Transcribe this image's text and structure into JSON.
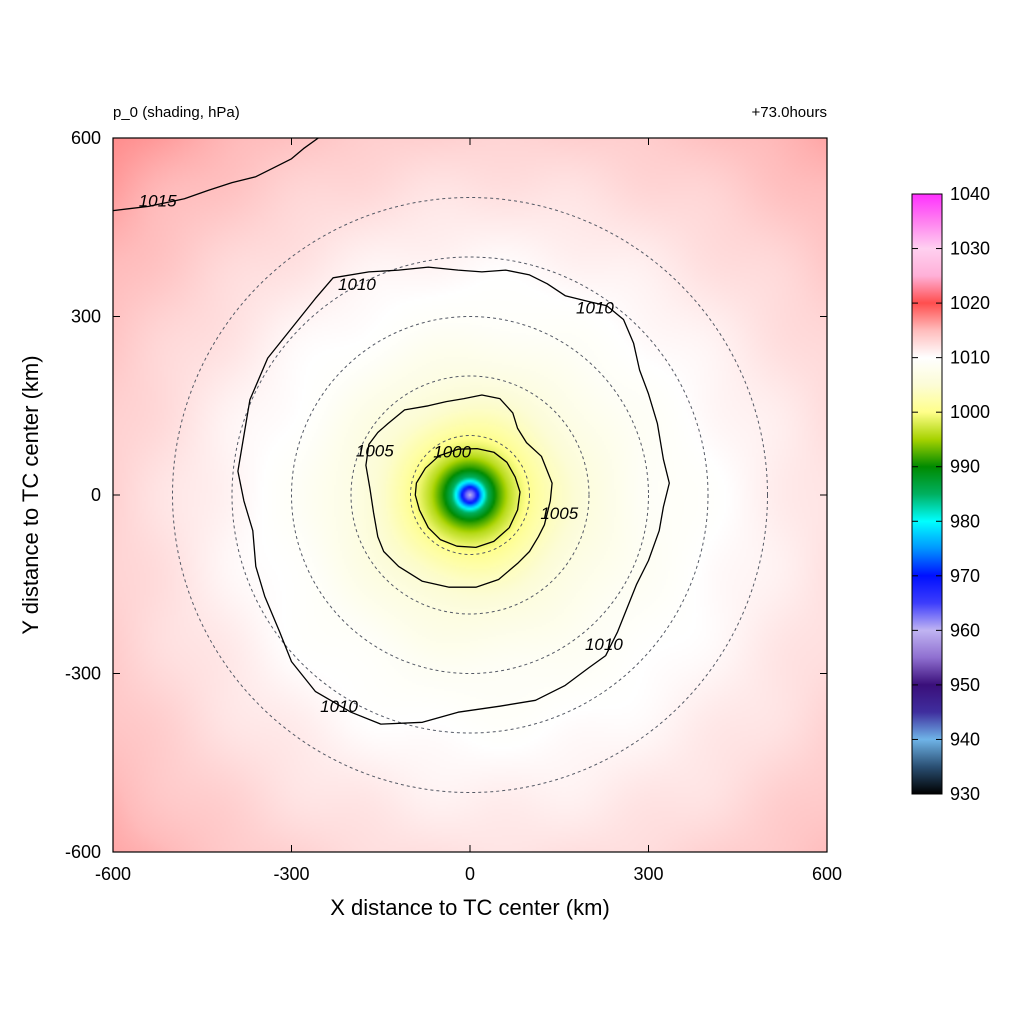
{
  "chart_data": {
    "type": "heatmap",
    "title_left": "p_0 (shading, hPa)",
    "title_right": "+73.0hours",
    "xlabel": "X distance to TC center (km)",
    "ylabel": "Y distance to TC center (km)",
    "xlim": [
      -600,
      600
    ],
    "ylim": [
      -600,
      600
    ],
    "xticks": [
      -600,
      -300,
      0,
      300,
      600
    ],
    "yticks": [
      -600,
      -300,
      0,
      300,
      600
    ],
    "xtick_labels": [
      "-600",
      "-300",
      "0",
      "300",
      "600"
    ],
    "ytick_labels": [
      "-600",
      "-300",
      "0",
      "300",
      "600"
    ],
    "colorbar": {
      "ticks": [
        930,
        940,
        950,
        960,
        970,
        980,
        990,
        1000,
        1010,
        1020,
        1030,
        1040
      ],
      "tick_labels": [
        "930",
        "940",
        "950",
        "960",
        "970",
        "980",
        "990",
        "1000",
        "1010",
        "1020",
        "1030",
        "1040"
      ],
      "stops": [
        {
          "v": 930,
          "c": "#000000"
        },
        {
          "v": 935,
          "c": "#2a4f73"
        },
        {
          "v": 940,
          "c": "#6fb4e8"
        },
        {
          "v": 945,
          "c": "#3f2e9e"
        },
        {
          "v": 950,
          "c": "#3a0f7a"
        },
        {
          "v": 955,
          "c": "#8f6fd0"
        },
        {
          "v": 960,
          "c": "#c0b4f2"
        },
        {
          "v": 965,
          "c": "#3d3dfc"
        },
        {
          "v": 970,
          "c": "#0010ff"
        },
        {
          "v": 975,
          "c": "#0096ff"
        },
        {
          "v": 980,
          "c": "#00ffff"
        },
        {
          "v": 985,
          "c": "#00b060"
        },
        {
          "v": 990,
          "c": "#008a00"
        },
        {
          "v": 995,
          "c": "#a6d200"
        },
        {
          "v": 1000,
          "c": "#ffff8a"
        },
        {
          "v": 1005,
          "c": "#fcfcd6"
        },
        {
          "v": 1010,
          "c": "#ffffff"
        },
        {
          "v": 1015,
          "c": "#ffbcbc"
        },
        {
          "v": 1020,
          "c": "#ff4e4e"
        },
        {
          "v": 1025,
          "c": "#ffb0d8"
        },
        {
          "v": 1030,
          "c": "#ffd0f0"
        },
        {
          "v": 1035,
          "c": "#ff80f0"
        },
        {
          "v": 1040,
          "c": "#ff30ff"
        }
      ]
    },
    "field_profile": [
      {
        "r": 0,
        "p": 960
      },
      {
        "r": 8,
        "p": 964
      },
      {
        "r": 15,
        "p": 972
      },
      {
        "r": 22,
        "p": 979
      },
      {
        "r": 30,
        "p": 985
      },
      {
        "r": 45,
        "p": 991
      },
      {
        "r": 65,
        "p": 996
      },
      {
        "r": 85,
        "p": 999
      },
      {
        "r": 110,
        "p": 1001.5
      },
      {
        "r": 145,
        "p": 1004
      },
      {
        "r": 200,
        "p": 1006.5
      },
      {
        "r": 290,
        "p": 1009
      },
      {
        "r": 380,
        "p": 1010
      },
      {
        "r": 500,
        "p": 1011.5
      },
      {
        "r": 650,
        "p": 1013.3
      },
      {
        "r": 850,
        "p": 1016
      }
    ],
    "range_circles_km": [
      100,
      200,
      300,
      400,
      500
    ],
    "contours": [
      {
        "level": 1000,
        "label": "1000",
        "points": [
          [
            -90,
            20
          ],
          [
            -75,
            45
          ],
          [
            -52,
            66
          ],
          [
            -20,
            77
          ],
          [
            12,
            78
          ],
          [
            40,
            72
          ],
          [
            62,
            55
          ],
          [
            76,
            30
          ],
          [
            84,
            5
          ],
          [
            80,
            -25
          ],
          [
            66,
            -55
          ],
          [
            40,
            -78
          ],
          [
            10,
            -88
          ],
          [
            -22,
            -86
          ],
          [
            -50,
            -75
          ],
          [
            -70,
            -55
          ],
          [
            -85,
            -25
          ],
          [
            -92,
            0
          ]
        ],
        "label_at": [
          -30,
          73
        ]
      },
      {
        "level": 1005,
        "label": "1005",
        "points": [
          [
            -170,
            85
          ],
          [
            -155,
            105
          ],
          [
            -138,
            120
          ],
          [
            -110,
            143
          ],
          [
            -70,
            150
          ],
          [
            -40,
            157
          ],
          [
            -10,
            162
          ],
          [
            20,
            168
          ],
          [
            50,
            162
          ],
          [
            72,
            138
          ],
          [
            80,
            112
          ],
          [
            95,
            88
          ],
          [
            120,
            65
          ],
          [
            138,
            20
          ],
          [
            135,
            -10
          ],
          [
            125,
            -50
          ],
          [
            115,
            -70
          ],
          [
            100,
            -95
          ],
          [
            80,
            -115
          ],
          [
            48,
            -142
          ],
          [
            10,
            -155
          ],
          [
            -35,
            -155
          ],
          [
            -80,
            -145
          ],
          [
            -120,
            -120
          ],
          [
            -145,
            -95
          ],
          [
            -155,
            -70
          ],
          [
            -162,
            -30
          ],
          [
            -168,
            10
          ],
          [
            -175,
            50
          ]
        ],
        "label_at": [
          -160,
          75
        ]
      },
      {
        "level": 1010,
        "label": "1010",
        "points": [
          [
            -230,
            365
          ],
          [
            -170,
            375
          ],
          [
            -120,
            378
          ],
          [
            -70,
            383
          ],
          [
            -20,
            378
          ],
          [
            20,
            375
          ],
          [
            60,
            378
          ],
          [
            100,
            370
          ],
          [
            130,
            355
          ],
          [
            160,
            335
          ],
          [
            200,
            325
          ],
          [
            230,
            318
          ],
          [
            258,
            295
          ],
          [
            275,
            255
          ],
          [
            285,
            210
          ],
          [
            300,
            170
          ],
          [
            315,
            120
          ],
          [
            325,
            60
          ],
          [
            335,
            20
          ],
          [
            325,
            -20
          ],
          [
            318,
            -60
          ],
          [
            300,
            -110
          ],
          [
            280,
            -150
          ],
          [
            248,
            -230
          ],
          [
            228,
            -270
          ],
          [
            200,
            -290
          ],
          [
            160,
            -320
          ],
          [
            110,
            -345
          ],
          [
            50,
            -355
          ],
          [
            -20,
            -365
          ],
          [
            -80,
            -382
          ],
          [
            -150,
            -385
          ],
          [
            -200,
            -365
          ],
          [
            -260,
            -330
          ],
          [
            -300,
            -280
          ],
          [
            -320,
            -230
          ],
          [
            -345,
            -170
          ],
          [
            -360,
            -120
          ],
          [
            -365,
            -60
          ],
          [
            -380,
            -10
          ],
          [
            -390,
            40
          ],
          [
            -380,
            100
          ],
          [
            -370,
            160
          ],
          [
            -340,
            230
          ],
          [
            -300,
            280
          ],
          [
            -260,
            330
          ]
        ],
        "label_at": [
          -190,
          355
        ]
      },
      {
        "level": 1015,
        "label": "1015",
        "points": [
          [
            -600,
            478
          ],
          [
            -540,
            485
          ],
          [
            -480,
            498
          ],
          [
            -440,
            512
          ],
          [
            -400,
            525
          ],
          [
            -360,
            535
          ],
          [
            -330,
            550
          ],
          [
            -300,
            565
          ],
          [
            -280,
            582
          ],
          [
            -255,
            600
          ]
        ],
        "label_at": [
          -525,
          495
        ]
      }
    ],
    "extra_labels": [
      {
        "label": "1010",
        "at": [
          210,
          315
        ]
      },
      {
        "label": "1005",
        "at": [
          150,
          -30
        ]
      },
      {
        "label": "1010",
        "at": [
          225,
          -250
        ]
      },
      {
        "label": "1010",
        "at": [
          -220,
          -355
        ]
      }
    ]
  }
}
